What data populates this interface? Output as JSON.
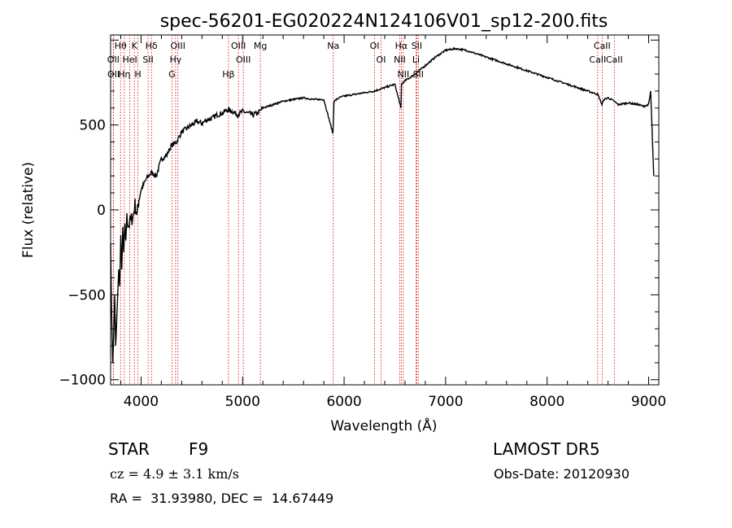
{
  "chart_data": {
    "type": "line",
    "title": "spec-56201-EG020224N124106V01_sp12-200.fits",
    "xlabel": "Wavelength (Å)",
    "ylabel": "Flux (relative)",
    "xlim": [
      3700,
      9100
    ],
    "ylim": [
      -1030,
      1030
    ],
    "xticks": [
      4000,
      5000,
      6000,
      7000,
      8000,
      9000
    ],
    "yticks": [
      -1000,
      -500,
      0,
      500
    ],
    "grid": false,
    "series": [
      {
        "values_note": "",
        "x": [
          3700,
          3710,
          3720,
          3730,
          3740,
          3750,
          3760,
          3770,
          3780,
          3790,
          3800,
          3810,
          3820,
          3830,
          3840,
          3850,
          3860,
          3880,
          3900,
          3920,
          3940,
          3960,
          3980,
          4000,
          4050,
          4100,
          4150,
          4200,
          4250,
          4300,
          4350,
          4400,
          4450,
          4500,
          4550,
          4600,
          4650,
          4700,
          4750,
          4800,
          4850,
          4900,
          4950,
          5000,
          5050,
          5100,
          5150,
          5200,
          5300,
          5400,
          5500,
          5600,
          5700,
          5800,
          5890,
          5900,
          5950,
          6000,
          6100,
          6200,
          6300,
          6400,
          6500,
          6560,
          6565,
          6600,
          6700,
          6800,
          6900,
          7000,
          7100,
          7200,
          7300,
          7400,
          7500,
          7600,
          7700,
          7800,
          7900,
          8000,
          8100,
          8200,
          8300,
          8400,
          8500,
          8540,
          8560,
          8600,
          8660,
          8700,
          8800,
          8900,
          8950,
          9000,
          9020,
          9050
        ],
        "y": [
          -200,
          -600,
          -900,
          -750,
          -500,
          -800,
          -650,
          -500,
          -350,
          -450,
          -150,
          -350,
          -100,
          -250,
          -80,
          -180,
          -50,
          -90,
          -60,
          -40,
          30,
          -30,
          70,
          120,
          180,
          220,
          200,
          300,
          320,
          380,
          400,
          460,
          480,
          500,
          520,
          510,
          530,
          540,
          560,
          570,
          590,
          580,
          560,
          580,
          570,
          560,
          570,
          600,
          620,
          640,
          650,
          660,
          650,
          650,
          450,
          640,
          660,
          670,
          680,
          690,
          700,
          720,
          740,
          600,
          740,
          760,
          800,
          850,
          900,
          940,
          950,
          940,
          920,
          900,
          880,
          860,
          840,
          820,
          800,
          780,
          760,
          740,
          720,
          700,
          680,
          620,
          650,
          660,
          640,
          620,
          630,
          620,
          610,
          620,
          700,
          200
        ]
      }
    ],
    "spectral_lines": [
      {
        "label": "Hθ",
        "wavelength": 3798
      },
      {
        "label": "OII",
        "wavelength": 3727
      },
      {
        "label": "OII",
        "wavelength": 3729
      },
      {
        "label": "Hη",
        "wavelength": 3835
      },
      {
        "label": "K",
        "wavelength": 3934
      },
      {
        "label": "HeI",
        "wavelength": 3889
      },
      {
        "label": "H",
        "wavelength": 3969
      },
      {
        "label": "Hδ",
        "wavelength": 4102
      },
      {
        "label": "SII",
        "wavelength": 4069
      },
      {
        "label": "OIII",
        "wavelength": 4363
      },
      {
        "label": "Hγ",
        "wavelength": 4340
      },
      {
        "label": "G",
        "wavelength": 4304
      },
      {
        "label": "OIII",
        "wavelength": 4959
      },
      {
        "label": "OIII",
        "wavelength": 5007
      },
      {
        "label": "Hβ",
        "wavelength": 4861
      },
      {
        "label": "Mg",
        "wavelength": 5175
      },
      {
        "label": "Na",
        "wavelength": 5893
      },
      {
        "label": "OI",
        "wavelength": 6300
      },
      {
        "label": "OI",
        "wavelength": 6364
      },
      {
        "label": "Hα",
        "wavelength": 6563
      },
      {
        "label": "NII",
        "wavelength": 6548
      },
      {
        "label": "NII",
        "wavelength": 6583
      },
      {
        "label": "SII",
        "wavelength": 6716
      },
      {
        "label": "Li",
        "wavelength": 6708
      },
      {
        "label": "SII",
        "wavelength": 6731
      },
      {
        "label": "CaII",
        "wavelength": 8542
      },
      {
        "label": "CaII",
        "wavelength": 8498
      },
      {
        "label": "CaII",
        "wavelength": 8662
      }
    ]
  },
  "info": {
    "object_class": "STAR",
    "subclass": "F9",
    "redshift_line": "cz = 4.9 ± 3.1 km/s",
    "coords_line": "RA =  31.93980, DEC =  14.67449",
    "survey": "LAMOST DR5",
    "obs_date": "Obs-Date: 20120930"
  },
  "colors": {
    "line": "#000000",
    "spectral_line": "#cc0000",
    "background": "#ffffff"
  }
}
